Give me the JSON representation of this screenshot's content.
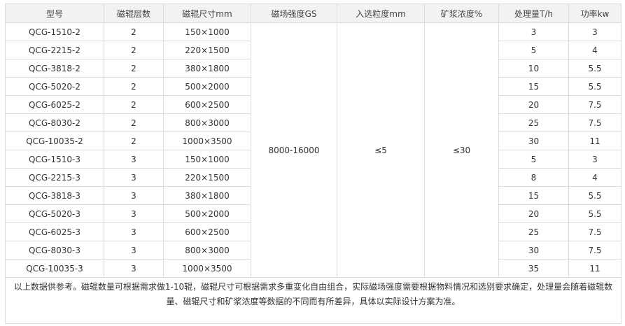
{
  "headers": [
    "型号",
    "磁辊层数",
    "磁辊尺寸mm",
    "磁场强度GS",
    "入选粒度mm",
    "矿浆浓度%",
    "处理量T/h",
    "功率kw"
  ],
  "shared": {
    "field_strength": "8000-16000",
    "feed_size": "≤5",
    "pulp_density": "≤30"
  },
  "rows": [
    [
      "QCG-1510-2",
      "2",
      "150×1000",
      "3",
      "3"
    ],
    [
      "QCG-2215-2",
      "2",
      "220×1500",
      "5",
      "4"
    ],
    [
      "QCG-3818-2",
      "2",
      "380×1800",
      "10",
      "5.5"
    ],
    [
      "QCG-5020-2",
      "2",
      "500×2000",
      "15",
      "5.5"
    ],
    [
      "QCG-6025-2",
      "2",
      "600×2500",
      "20",
      "7.5"
    ],
    [
      "QCG-8030-2",
      "2",
      "800×3000",
      "25",
      "7.5"
    ],
    [
      "QCG-10035-2",
      "2",
      "1000×3500",
      "30",
      "11"
    ],
    [
      "QCG-1510-3",
      "3",
      "150×1000",
      "5",
      "3"
    ],
    [
      "QCG-2215-3",
      "3",
      "220×1500",
      "8",
      "4"
    ],
    [
      "QCG-3818-3",
      "3",
      "380×1800",
      "15",
      "5.5"
    ],
    [
      "QCG-5020-3",
      "3",
      "500×2000",
      "20",
      "5.5"
    ],
    [
      "QCG-6025-3",
      "3",
      "600×2500",
      "25",
      "7.5"
    ],
    [
      "QCG-8030-3",
      "3",
      "800×3000",
      "30",
      "7.5"
    ],
    [
      "QCG-10035-3",
      "3",
      "1000×3500",
      "35",
      "11"
    ]
  ],
  "note": "以上数据供参考。磁辊数量可根据需求做1-10辊，磁辊尺寸可根据需求多重变化自由组合，实际磁场强度需要根据物料情况和选别要求确定，处理量会随着磁辊数量、磁辊尺寸和矿浆浓度等数据的不同而有所差异，具体以实际设计方案为准。"
}
